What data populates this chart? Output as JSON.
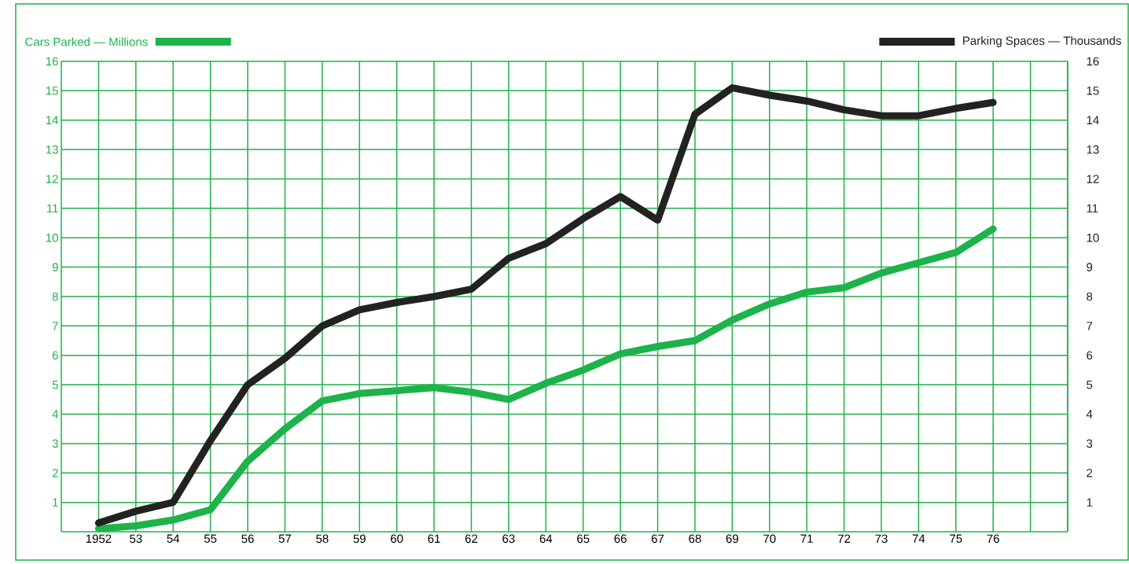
{
  "chart_data": {
    "type": "line",
    "x": [
      1952,
      1953,
      1954,
      1955,
      1956,
      1957,
      1958,
      1959,
      1960,
      1961,
      1962,
      1963,
      1964,
      1965,
      1966,
      1967,
      1968,
      1969,
      1970,
      1971,
      1972,
      1973,
      1974,
      1975,
      1976
    ],
    "series": [
      {
        "name": "Cars Parked — Millions",
        "color": "#1db34a",
        "values": [
          0.1,
          0.2,
          0.4,
          0.75,
          2.4,
          3.5,
          4.45,
          4.7,
          4.8,
          4.9,
          4.75,
          4.5,
          5.05,
          5.5,
          6.05,
          6.3,
          6.5,
          7.2,
          7.75,
          8.15,
          8.3,
          8.8,
          9.15,
          9.5,
          10.3
        ]
      },
      {
        "name": "Parking Spaces — Thousands",
        "color": "#222222",
        "axis": "y2",
        "values": [
          0.3,
          0.7,
          1.0,
          3.1,
          5.0,
          5.9,
          7.0,
          7.55,
          7.8,
          8.0,
          8.25,
          9.3,
          9.8,
          10.65,
          11.4,
          10.6,
          14.2,
          15.1,
          14.85,
          14.65,
          14.35,
          14.15,
          14.15,
          14.4,
          14.6
        ]
      }
    ],
    "xlim": [
      1951,
      1978
    ],
    "xticks": [
      {
        "value": 1952,
        "label": "1952"
      },
      {
        "value": 1953,
        "label": "53"
      },
      {
        "value": 1954,
        "label": "54"
      },
      {
        "value": 1955,
        "label": "55"
      },
      {
        "value": 1956,
        "label": "56"
      },
      {
        "value": 1957,
        "label": "57"
      },
      {
        "value": 1958,
        "label": "58"
      },
      {
        "value": 1959,
        "label": "59"
      },
      {
        "value": 1960,
        "label": "60"
      },
      {
        "value": 1961,
        "label": "61"
      },
      {
        "value": 1962,
        "label": "62"
      },
      {
        "value": 1963,
        "label": "63"
      },
      {
        "value": 1964,
        "label": "64"
      },
      {
        "value": 1965,
        "label": "65"
      },
      {
        "value": 1966,
        "label": "66"
      },
      {
        "value": 1967,
        "label": "67"
      },
      {
        "value": 1968,
        "label": "68"
      },
      {
        "value": 1969,
        "label": "69"
      },
      {
        "value": 1970,
        "label": "70"
      },
      {
        "value": 1971,
        "label": "71"
      },
      {
        "value": 1972,
        "label": "72"
      },
      {
        "value": 1973,
        "label": "73"
      },
      {
        "value": 1974,
        "label": "74"
      },
      {
        "value": 1975,
        "label": "75"
      },
      {
        "value": 1976,
        "label": "76"
      },
      {
        "value": 1977,
        "label": null
      },
      {
        "value": 1978,
        "label": null
      }
    ],
    "ylim": [
      0,
      16
    ],
    "yticks": [
      1,
      2,
      3,
      4,
      5,
      6,
      7,
      8,
      9,
      10,
      11,
      12,
      13,
      14,
      15,
      16
    ],
    "y2lim": [
      0,
      16
    ],
    "y2ticks": [
      1,
      2,
      3,
      4,
      5,
      6,
      7,
      8,
      9,
      10,
      11,
      12,
      13,
      14,
      15,
      16
    ],
    "grid": true,
    "legend": "top",
    "line_style": "solid"
  }
}
